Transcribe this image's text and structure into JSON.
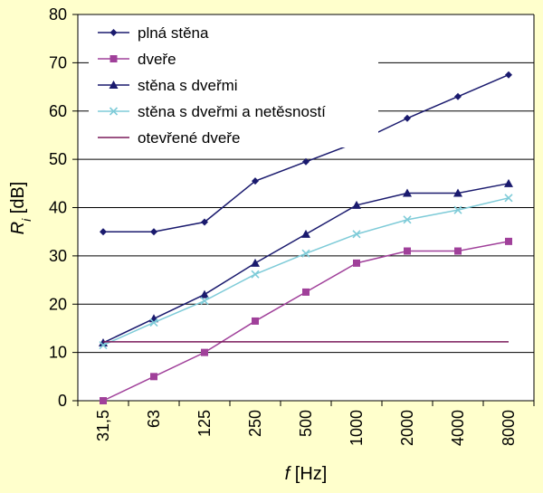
{
  "chart_data": {
    "type": "line",
    "categories": [
      "31,5",
      "63",
      "125",
      "250",
      "500",
      "1000",
      "2000",
      "4000",
      "8000"
    ],
    "ylim": [
      0,
      80
    ],
    "yticks": [
      0,
      10,
      20,
      30,
      40,
      50,
      60,
      70,
      80
    ],
    "xlabel": {
      "italic": "f",
      "rest": " [Hz]"
    },
    "ylabel": {
      "italic": "R",
      "sub": "i",
      "rest": " [dB]"
    },
    "grid": "horizontal",
    "legend_position": "top-left inside plot",
    "series": [
      {
        "name": "plná stěna",
        "color": "#1a1a6e",
        "marker": "diamond",
        "values": [
          35,
          35,
          37,
          45.5,
          49.5,
          53.5,
          58.5,
          63,
          67.5
        ]
      },
      {
        "name": "dveře",
        "color": "#a0409a",
        "marker": "square",
        "values": [
          0,
          5,
          10,
          16.5,
          22.5,
          28.5,
          31,
          31,
          33
        ]
      },
      {
        "name": "stěna s dveřmi",
        "color": "#1a1a6e",
        "marker": "triangle",
        "values": [
          12,
          17,
          22,
          28.5,
          34.5,
          40.5,
          43,
          43,
          45
        ]
      },
      {
        "name": "stěna s dveřmi a netěsností",
        "color": "#7ecbd8",
        "marker": "x",
        "values": [
          11.5,
          16.2,
          20.7,
          26.2,
          30.5,
          34.5,
          37.5,
          39.5,
          42
        ]
      },
      {
        "name": "otevřené dveře",
        "color": "#7a1a5a",
        "marker": "none",
        "values": [
          12.2,
          12.2,
          12.2,
          12.2,
          12.2,
          12.2,
          12.2,
          12.2,
          12.2
        ]
      }
    ]
  }
}
